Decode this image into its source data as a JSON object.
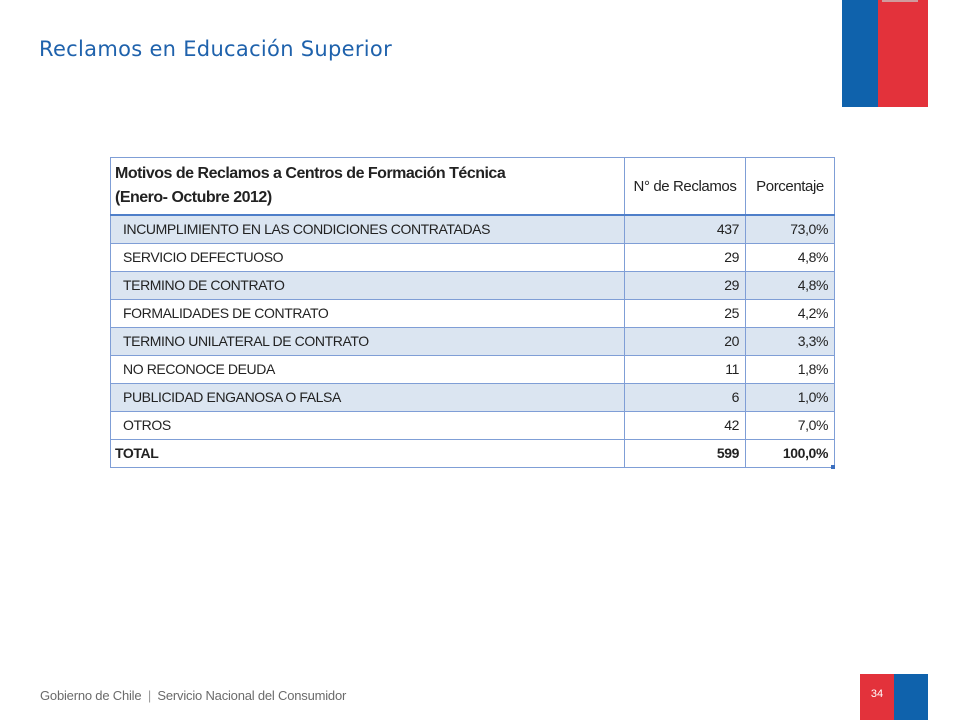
{
  "slide": {
    "title": "Reclamos en Educación Superior",
    "colors": {
      "title": "#1f62ac",
      "flag_blue": "#0f62ac",
      "flag_red": "#e3323b",
      "row_shade": "#dbe5f1",
      "grid": "#7f9ed6"
    }
  },
  "table": {
    "title_line1": "Motivos de Reclamos a Centros de Formación Técnica",
    "title_line2": "(Enero- Octubre 2012)",
    "col_count_header": "N° de Reclamos",
    "col_pct_header": "Porcentaje",
    "rows": [
      {
        "motivo": "INCUMPLIMIENTO EN LAS CONDICIONES CONTRATADAS",
        "reclamos": "437",
        "porcentaje": "73,0%"
      },
      {
        "motivo": "SERVICIO DEFECTUOSO",
        "reclamos": "29",
        "porcentaje": "4,8%"
      },
      {
        "motivo": "TERMINO DE CONTRATO",
        "reclamos": "29",
        "porcentaje": "4,8%"
      },
      {
        "motivo": "FORMALIDADES DE CONTRATO",
        "reclamos": "25",
        "porcentaje": "4,2%"
      },
      {
        "motivo": "TERMINO UNILATERAL DE CONTRATO",
        "reclamos": "20",
        "porcentaje": "3,3%"
      },
      {
        "motivo": "NO RECONOCE DEUDA",
        "reclamos": "11",
        "porcentaje": "1,8%"
      },
      {
        "motivo": "PUBLICIDAD ENGANOSA O FALSA",
        "reclamos": "6",
        "porcentaje": "1,0%"
      },
      {
        "motivo": "OTROS",
        "reclamos": "42",
        "porcentaje": "7,0%"
      }
    ],
    "total": {
      "label": "TOTAL",
      "reclamos": "599",
      "porcentaje": "100,0%"
    }
  },
  "footer": {
    "gobierno": "Gobierno de Chile",
    "separator": "|",
    "servicio": "Servicio Nacional del Consumidor",
    "page_number": "34"
  }
}
